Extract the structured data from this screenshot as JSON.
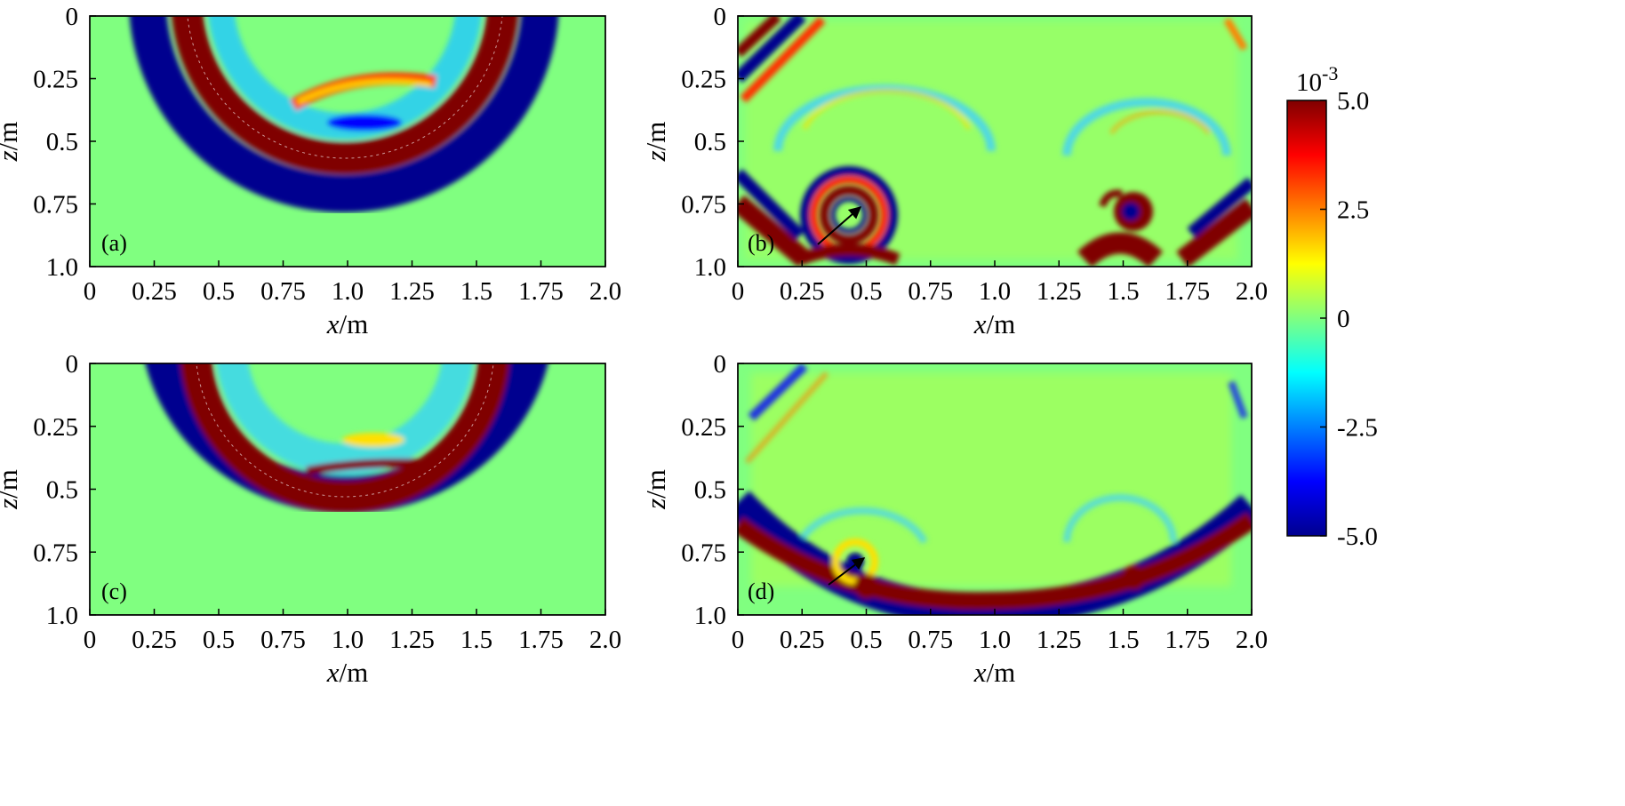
{
  "chart_data": [
    {
      "type": "heatmap",
      "panel_label": "(a)",
      "xlabel_var": "x",
      "xlabel_unit": "/m",
      "ylabel_var": "z",
      "ylabel_unit": "/m",
      "xlim": [
        0,
        2.0
      ],
      "ylim": [
        0,
        1.0
      ],
      "x_ticks": [
        "0",
        "0.25",
        "0.5",
        "0.75",
        "1.0",
        "1.25",
        "1.5",
        "1.75",
        "2.0"
      ],
      "y_ticks": [
        "0",
        "0.25",
        "0.5",
        "0.75",
        "1.0"
      ],
      "y_reversed": true
    },
    {
      "type": "heatmap",
      "panel_label": "(b)",
      "xlabel_var": "x",
      "xlabel_unit": "/m",
      "ylabel_var": "z",
      "ylabel_unit": "/m",
      "xlim": [
        0,
        2.0
      ],
      "ylim": [
        0,
        1.0
      ],
      "x_ticks": [
        "0",
        "0.25",
        "0.5",
        "0.75",
        "1.0",
        "1.25",
        "1.5",
        "1.75",
        "2.0"
      ],
      "y_ticks": [
        "0",
        "0.25",
        "0.5",
        "0.75",
        "1.0"
      ],
      "y_reversed": true,
      "annotation": "arrow pointing to scatterer near x=0.47, z=0.77"
    },
    {
      "type": "heatmap",
      "panel_label": "(c)",
      "xlabel_var": "x",
      "xlabel_unit": "/m",
      "ylabel_var": "z",
      "ylabel_unit": "/m",
      "xlim": [
        0,
        2.0
      ],
      "ylim": [
        0,
        1.0
      ],
      "x_ticks": [
        "0",
        "0.25",
        "0.5",
        "0.75",
        "1.0",
        "1.25",
        "1.5",
        "1.75",
        "2.0"
      ],
      "y_ticks": [
        "0",
        "0.25",
        "0.5",
        "0.75",
        "1.0"
      ],
      "y_reversed": true
    },
    {
      "type": "heatmap",
      "panel_label": "(d)",
      "xlabel_var": "x",
      "xlabel_unit": "/m",
      "ylabel_var": "z",
      "ylabel_unit": "/m",
      "xlim": [
        0,
        2.0
      ],
      "ylim": [
        0,
        1.0
      ],
      "x_ticks": [
        "0",
        "0.25",
        "0.5",
        "0.75",
        "1.0",
        "1.25",
        "1.5",
        "1.75",
        "2.0"
      ],
      "y_ticks": [
        "0",
        "0.25",
        "0.5",
        "0.75",
        "1.0"
      ],
      "y_reversed": true,
      "annotation": "arrow pointing to scatterer near x=0.47, z=0.77"
    }
  ],
  "colorbar": {
    "exponent_base": "10",
    "exponent_power": "-3",
    "range": [
      -5.0,
      5.0
    ],
    "tick_values": [
      5.0,
      2.5,
      0,
      -2.5,
      -5.0
    ],
    "tick_labels": [
      "5.0",
      "2.5",
      "0",
      "-2.5",
      "-5.0"
    ],
    "colormap": "jet",
    "colormap_stops": [
      "#00008f",
      "#0000ff",
      "#00ffff",
      "#80ff80",
      "#ffff00",
      "#ff0000",
      "#800000"
    ]
  },
  "colors": {
    "background_field": "#80ff80",
    "positive_max": "#800000",
    "negative_max": "#00008f"
  }
}
